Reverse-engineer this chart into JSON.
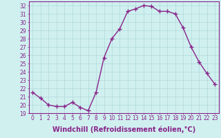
{
  "x": [
    0,
    1,
    2,
    3,
    4,
    5,
    6,
    7,
    8,
    9,
    10,
    11,
    12,
    13,
    14,
    15,
    16,
    17,
    18,
    19,
    20,
    21,
    22,
    23
  ],
  "y": [
    21.5,
    20.8,
    20.0,
    19.8,
    19.8,
    20.3,
    19.7,
    19.3,
    21.5,
    25.7,
    28.0,
    29.2,
    31.3,
    31.6,
    32.0,
    31.9,
    31.3,
    31.3,
    31.0,
    29.3,
    27.0,
    25.2,
    23.8,
    22.5
  ],
  "line_color": "#882288",
  "marker": "+",
  "marker_size": 4,
  "bg_color": "#d0f0f0",
  "grid_color": "#b0d8d8",
  "xlabel": "Windchill (Refroidissement éolien,°C)",
  "xlabel_fontsize": 7,
  "ylim": [
    19,
    32.5
  ],
  "yticks": [
    19,
    20,
    21,
    22,
    23,
    24,
    25,
    26,
    27,
    28,
    29,
    30,
    31,
    32
  ],
  "xticks": [
    0,
    1,
    2,
    3,
    4,
    5,
    6,
    7,
    8,
    9,
    10,
    11,
    12,
    13,
    14,
    15,
    16,
    17,
    18,
    19,
    20,
    21,
    22,
    23
  ],
  "tick_fontsize": 5.5,
  "line_width": 1.0,
  "axis_color": "#882288"
}
